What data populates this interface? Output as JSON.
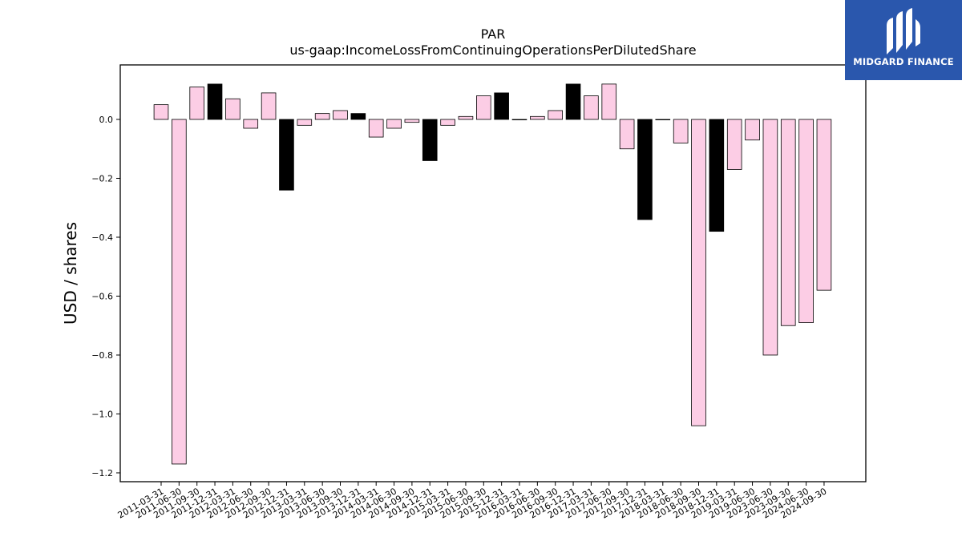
{
  "brand": {
    "name": "MIDGARD FINANCE",
    "icon": "midgard-logo-icon",
    "background": "#2a57ad"
  },
  "chart_data": {
    "type": "bar",
    "title": "PAR",
    "subtitle": "us-gaap:IncomeLossFromContinuingOperationsPerDilutedShare",
    "xlabel": "",
    "ylabel": "USD / shares",
    "ylim": [
      -1.23,
      0.185
    ],
    "yticks": [
      -1.2,
      -1.0,
      -0.8,
      -0.6,
      -0.4,
      -0.2,
      0.0
    ],
    "ytick_labels": [
      "−1.2",
      "−1.0",
      "−0.8",
      "−0.6",
      "−0.4",
      "−0.2",
      "0.0"
    ],
    "grid": false,
    "colors": {
      "default": "#fccde5",
      "highlight": "#000000",
      "edge": "#000000"
    },
    "categories": [
      "2011-03-31",
      "2011-06-30",
      "2011-09-30",
      "2011-12-31",
      "2012-03-31",
      "2012-06-30",
      "2012-09-30",
      "2012-12-31",
      "2013-03-31",
      "2013-06-30",
      "2013-09-30",
      "2013-12-31",
      "2014-03-31",
      "2014-06-30",
      "2014-09-30",
      "2014-12-31",
      "2015-03-31",
      "2015-06-30",
      "2015-09-30",
      "2015-12-31",
      "2016-03-31",
      "2016-06-30",
      "2016-09-30",
      "2016-12-31",
      "2017-03-31",
      "2017-06-30",
      "2017-09-30",
      "2017-12-31",
      "2018-03-31",
      "2018-06-30",
      "2018-09-30",
      "2018-12-31",
      "2019-03-31",
      "2019-06-30",
      "2023-06-30",
      "2023-09-30",
      "2024-06-30",
      "2024-09-30"
    ],
    "values": [
      0.05,
      -1.17,
      0.11,
      0.12,
      0.07,
      -0.03,
      0.09,
      -0.24,
      -0.02,
      0.02,
      0.03,
      0.02,
      -0.06,
      -0.03,
      -0.01,
      -0.14,
      -0.02,
      0.01,
      0.08,
      0.09,
      0.0,
      0.01,
      0.03,
      0.12,
      0.08,
      0.12,
      -0.1,
      -0.34,
      0.0,
      -0.08,
      -1.04,
      -0.38,
      -0.17,
      -0.07,
      -0.8,
      -0.7,
      -0.69,
      -0.58
    ],
    "highlight": [
      false,
      false,
      false,
      true,
      false,
      false,
      false,
      true,
      false,
      false,
      false,
      true,
      false,
      false,
      false,
      true,
      false,
      false,
      false,
      true,
      false,
      false,
      false,
      true,
      false,
      false,
      false,
      true,
      false,
      false,
      false,
      true,
      false,
      false,
      false,
      false,
      false,
      false
    ]
  }
}
